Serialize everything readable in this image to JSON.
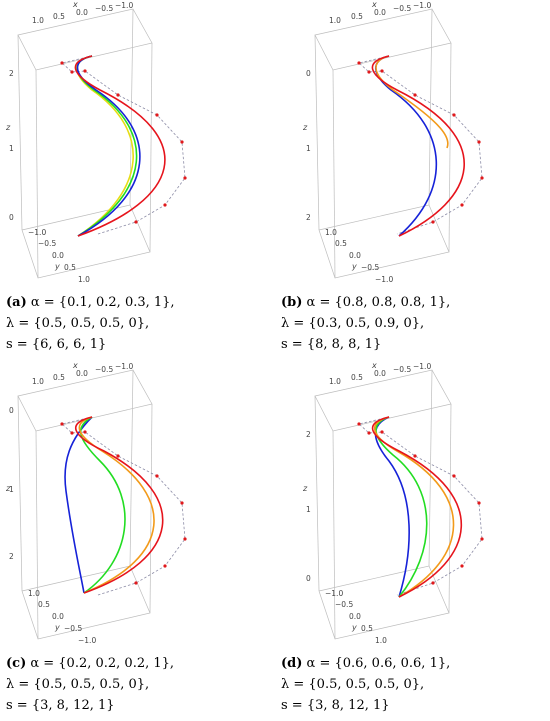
{
  "panels": [
    {
      "label": "(a)",
      "alpha_line": " α = {0.1, 0.2, 0.3, 1},",
      "lambda_line": "λ = {0.5, 0.5, 0.5, 0},",
      "s_line": "s = {6, 6, 6, 1}",
      "axis_x": "x",
      "axis_y": "y",
      "axis_z": "z",
      "x_ticks": [
        "1.0",
        "0.5",
        "0.0",
        "−0.5",
        "−1.0"
      ],
      "y_ticks": [
        "−1.0",
        "−0.5",
        "0.0",
        "0.5",
        "1.0"
      ],
      "z_ticks": [
        "2",
        "1",
        "0"
      ]
    },
    {
      "label": "(b)",
      "alpha_line": " α = {0.8, 0.8, 0.8, 1},",
      "lambda_line": "λ = {0.3, 0.5, 0.9, 0},",
      "s_line": "s = {8, 8, 8, 1}",
      "axis_x": "x",
      "axis_y": "y",
      "axis_z": "z",
      "x_ticks": [
        "1.0",
        "0.5",
        "0.0",
        "−0.5",
        "−1.0"
      ],
      "y_ticks": [
        "1.0",
        "0.5",
        "0.0",
        "−0.5",
        "−1.0"
      ],
      "z_ticks": [
        "0",
        "1",
        "2"
      ]
    },
    {
      "label": "(c)",
      "alpha_line": " α = {0.2, 0.2, 0.2, 1},",
      "lambda_line": "λ = {0.5, 0.5, 0.5, 0},",
      "s_line": "s = {3, 8, 12, 1}",
      "axis_x": "x",
      "axis_y": "y",
      "axis_z": "z",
      "x_ticks": [
        "1.0",
        "0.5",
        "0.0",
        "−0.5",
        "−1.0"
      ],
      "y_ticks": [
        "1.0",
        "0.5",
        "0.0",
        "−0.5",
        "−1.0"
      ],
      "z_ticks": [
        "0",
        "1",
        "2"
      ]
    },
    {
      "label": "(d)",
      "alpha_line": " α = {0.6, 0.6, 0.6, 1},",
      "lambda_line": "λ = {0.5, 0.5, 0.5, 0},",
      "s_line": "s = {3, 8, 12, 1}",
      "axis_x": "x",
      "axis_y": "y",
      "axis_z": "z",
      "x_ticks": [
        "1.0",
        "0.5",
        "0.0",
        "−0.5",
        "−1.0"
      ],
      "y_ticks": [
        "−1.0",
        "−0.5",
        "0.0",
        "0.5",
        "1.0"
      ],
      "z_ticks": [
        "2",
        "1",
        "0"
      ]
    }
  ],
  "colors": {
    "control_polygon": "#8c8ca6",
    "control_point": "#e0191c",
    "curve_red": "#e6141c",
    "curve_orange": "#f29a1a",
    "curve_yellow": "#e6dc14",
    "curve_green": "#22dd22",
    "curve_blue": "#1622d8",
    "box": "#bdbdbd"
  }
}
